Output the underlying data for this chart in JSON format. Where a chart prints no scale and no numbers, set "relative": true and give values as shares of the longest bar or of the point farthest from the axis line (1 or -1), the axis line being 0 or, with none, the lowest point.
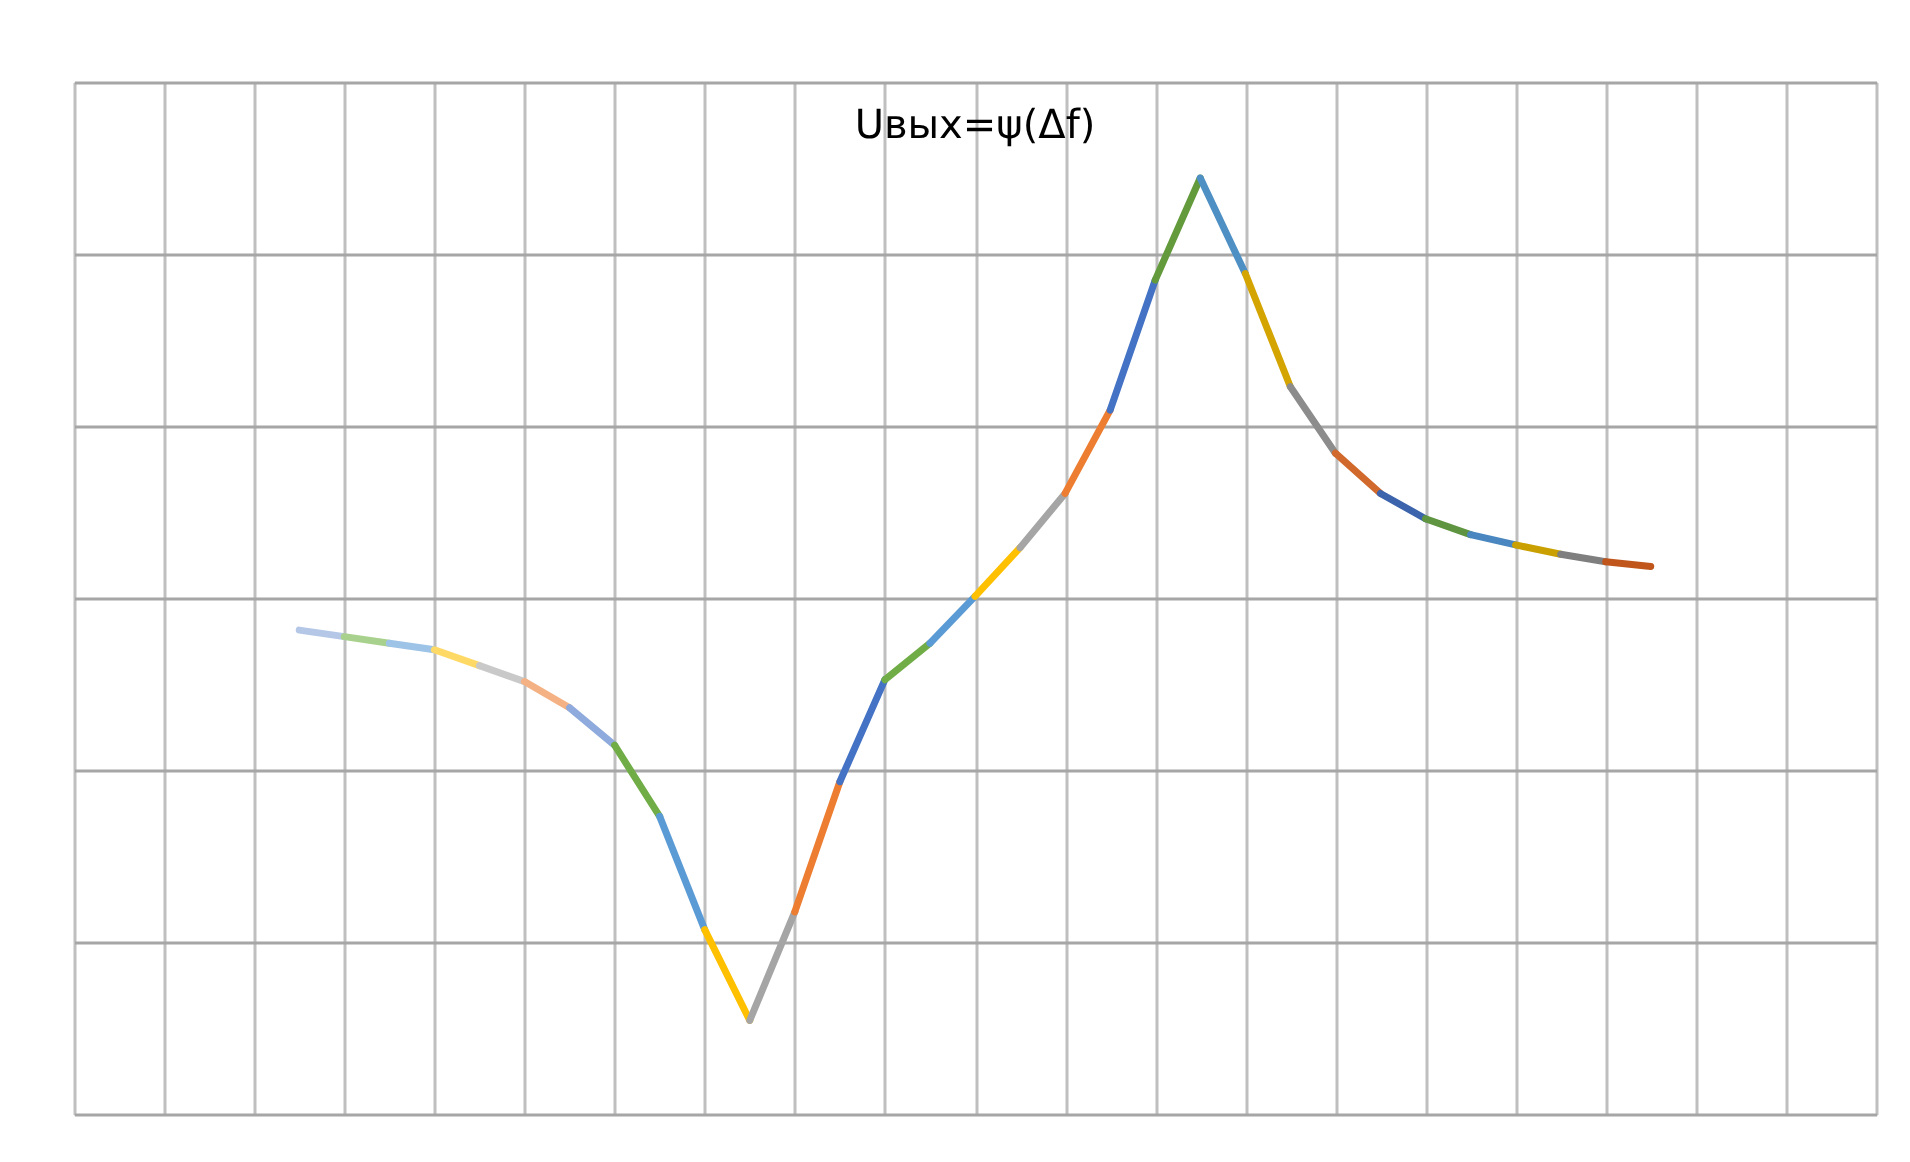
{
  "chart_data": {
    "type": "line",
    "title": "Uвых=ψ(Δf)",
    "relative": true,
    "grid": true,
    "tick_labels": false,
    "categories": [
      null,
      null,
      null,
      null,
      null,
      null,
      null,
      null,
      null,
      null,
      null,
      null,
      null,
      null,
      null,
      null,
      null,
      null,
      null,
      null,
      null,
      null,
      null,
      null,
      null,
      null,
      null,
      null,
      null,
      null,
      null,
      null,
      null,
      null,
      null,
      null,
      null,
      null,
      null,
      null,
      null
    ],
    "series": [
      {
        "color": "#b4c7e7",
        "values": [
          null,
          null,
          null,
          null,
          null,
          0.517,
          0.51,
          null,
          null,
          null,
          null,
          null,
          null,
          null,
          null,
          null,
          null,
          null,
          null,
          null,
          null,
          null,
          null,
          null,
          null,
          null,
          null,
          null,
          null,
          null,
          null,
          null,
          null,
          null,
          null,
          null,
          null,
          null,
          null,
          null,
          null
        ]
      },
      {
        "color": "#a9d18e",
        "values": [
          null,
          null,
          null,
          null,
          null,
          null,
          0.51,
          0.503,
          null,
          null,
          null,
          null,
          null,
          null,
          null,
          null,
          null,
          null,
          null,
          null,
          null,
          null,
          null,
          null,
          null,
          null,
          null,
          null,
          null,
          null,
          null,
          null,
          null,
          null,
          null,
          null,
          null,
          null,
          null,
          null,
          null
        ]
      },
      {
        "color": "#9dc3e6",
        "values": [
          null,
          null,
          null,
          null,
          null,
          null,
          null,
          0.503,
          0.496,
          null,
          null,
          null,
          null,
          null,
          null,
          null,
          null,
          null,
          null,
          null,
          null,
          null,
          null,
          null,
          null,
          null,
          null,
          null,
          null,
          null,
          null,
          null,
          null,
          null,
          null,
          null,
          null,
          null,
          null,
          null,
          null
        ]
      },
      {
        "color": "#ffd966",
        "values": [
          null,
          null,
          null,
          null,
          null,
          null,
          null,
          null,
          0.496,
          0.479,
          null,
          null,
          null,
          null,
          null,
          null,
          null,
          null,
          null,
          null,
          null,
          null,
          null,
          null,
          null,
          null,
          null,
          null,
          null,
          null,
          null,
          null,
          null,
          null,
          null,
          null,
          null,
          null,
          null,
          null,
          null
        ]
      },
      {
        "color": "#c9c9c9",
        "values": [
          null,
          null,
          null,
          null,
          null,
          null,
          null,
          null,
          null,
          0.479,
          0.462,
          null,
          null,
          null,
          null,
          null,
          null,
          null,
          null,
          null,
          null,
          null,
          null,
          null,
          null,
          null,
          null,
          null,
          null,
          null,
          null,
          null,
          null,
          null,
          null,
          null,
          null,
          null,
          null,
          null,
          null
        ]
      },
      {
        "color": "#f4b183",
        "values": [
          null,
          null,
          null,
          null,
          null,
          null,
          null,
          null,
          null,
          null,
          0.462,
          0.434,
          null,
          null,
          null,
          null,
          null,
          null,
          null,
          null,
          null,
          null,
          null,
          null,
          null,
          null,
          null,
          null,
          null,
          null,
          null,
          null,
          null,
          null,
          null,
          null,
          null,
          null,
          null,
          null,
          null
        ]
      },
      {
        "color": "#8faadc",
        "values": [
          null,
          null,
          null,
          null,
          null,
          null,
          null,
          null,
          null,
          null,
          null,
          0.434,
          0.394,
          null,
          null,
          null,
          null,
          null,
          null,
          null,
          null,
          null,
          null,
          null,
          null,
          null,
          null,
          null,
          null,
          null,
          null,
          null,
          null,
          null,
          null,
          null,
          null,
          null,
          null,
          null,
          null
        ]
      },
      {
        "color": "#70ad47",
        "values": [
          null,
          null,
          null,
          null,
          null,
          null,
          null,
          null,
          null,
          null,
          null,
          null,
          0.394,
          0.318,
          null,
          null,
          null,
          null,
          null,
          null,
          null,
          null,
          null,
          null,
          null,
          null,
          null,
          null,
          null,
          null,
          null,
          null,
          null,
          null,
          null,
          null,
          null,
          null,
          null,
          null,
          null
        ]
      },
      {
        "color": "#5b9bd5",
        "values": [
          null,
          null,
          null,
          null,
          null,
          null,
          null,
          null,
          null,
          null,
          null,
          null,
          null,
          0.318,
          0.197,
          null,
          null,
          null,
          null,
          null,
          null,
          null,
          null,
          null,
          null,
          null,
          null,
          null,
          null,
          null,
          null,
          null,
          null,
          null,
          null,
          null,
          null,
          null,
          null,
          null,
          null
        ]
      },
      {
        "color": "#ffc000",
        "values": [
          null,
          null,
          null,
          null,
          null,
          null,
          null,
          null,
          null,
          null,
          null,
          null,
          null,
          null,
          0.197,
          0.1,
          null,
          null,
          null,
          null,
          null,
          null,
          null,
          null,
          null,
          null,
          null,
          null,
          null,
          null,
          null,
          null,
          null,
          null,
          null,
          null,
          null,
          null,
          null,
          null,
          null
        ]
      },
      {
        "color": "#a5a5a5",
        "values": [
          null,
          null,
          null,
          null,
          null,
          null,
          null,
          null,
          null,
          null,
          null,
          null,
          null,
          null,
          null,
          0.1,
          0.216,
          null,
          null,
          null,
          null,
          null,
          null,
          null,
          null,
          null,
          null,
          null,
          null,
          null,
          null,
          null,
          null,
          null,
          null,
          null,
          null,
          null,
          null,
          null,
          null
        ]
      },
      {
        "color": "#ed7d31",
        "values": [
          null,
          null,
          null,
          null,
          null,
          null,
          null,
          null,
          null,
          null,
          null,
          null,
          null,
          null,
          null,
          null,
          0.216,
          0.355,
          null,
          null,
          null,
          null,
          null,
          null,
          null,
          null,
          null,
          null,
          null,
          null,
          null,
          null,
          null,
          null,
          null,
          null,
          null,
          null,
          null,
          null,
          null
        ]
      },
      {
        "color": "#4472c4",
        "values": [
          null,
          null,
          null,
          null,
          null,
          null,
          null,
          null,
          null,
          null,
          null,
          null,
          null,
          null,
          null,
          null,
          null,
          0.355,
          0.464,
          null,
          null,
          null,
          null,
          null,
          null,
          null,
          null,
          null,
          null,
          null,
          null,
          null,
          null,
          null,
          null,
          null,
          null,
          null,
          null,
          null,
          null
        ]
      },
      {
        "color": "#70ad47",
        "values": [
          null,
          null,
          null,
          null,
          null,
          null,
          null,
          null,
          null,
          null,
          null,
          null,
          null,
          null,
          null,
          null,
          null,
          null,
          0.464,
          0.503,
          null,
          null,
          null,
          null,
          null,
          null,
          null,
          null,
          null,
          null,
          null,
          null,
          null,
          null,
          null,
          null,
          null,
          null,
          null,
          null,
          null
        ]
      },
      {
        "color": "#5b9bd5",
        "values": [
          null,
          null,
          null,
          null,
          null,
          null,
          null,
          null,
          null,
          null,
          null,
          null,
          null,
          null,
          null,
          null,
          null,
          null,
          null,
          0.503,
          0.553,
          null,
          null,
          null,
          null,
          null,
          null,
          null,
          null,
          null,
          null,
          null,
          null,
          null,
          null,
          null,
          null,
          null,
          null,
          null,
          null
        ]
      },
      {
        "color": "#ffc000",
        "values": [
          null,
          null,
          null,
          null,
          null,
          null,
          null,
          null,
          null,
          null,
          null,
          null,
          null,
          null,
          null,
          null,
          null,
          null,
          null,
          null,
          0.553,
          0.605,
          null,
          null,
          null,
          null,
          null,
          null,
          null,
          null,
          null,
          null,
          null,
          null,
          null,
          null,
          null,
          null,
          null,
          null,
          null
        ]
      },
      {
        "color": "#a5a5a5",
        "values": [
          null,
          null,
          null,
          null,
          null,
          null,
          null,
          null,
          null,
          null,
          null,
          null,
          null,
          null,
          null,
          null,
          null,
          null,
          null,
          null,
          null,
          0.605,
          0.663,
          null,
          null,
          null,
          null,
          null,
          null,
          null,
          null,
          null,
          null,
          null,
          null,
          null,
          null,
          null,
          null,
          null,
          null
        ]
      },
      {
        "color": "#ed7d31",
        "values": [
          null,
          null,
          null,
          null,
          null,
          null,
          null,
          null,
          null,
          null,
          null,
          null,
          null,
          null,
          null,
          null,
          null,
          null,
          null,
          null,
          null,
          null,
          0.663,
          0.752,
          null,
          null,
          null,
          null,
          null,
          null,
          null,
          null,
          null,
          null,
          null,
          null,
          null,
          null,
          null,
          null,
          null
        ]
      },
      {
        "color": "#4472c4",
        "values": [
          null,
          null,
          null,
          null,
          null,
          null,
          null,
          null,
          null,
          null,
          null,
          null,
          null,
          null,
          null,
          null,
          null,
          null,
          null,
          null,
          null,
          null,
          null,
          0.752,
          0.891,
          null,
          null,
          null,
          null,
          null,
          null,
          null,
          null,
          null,
          null,
          null,
          null,
          null,
          null,
          null,
          null
        ]
      },
      {
        "color": "#639a3c",
        "values": [
          null,
          null,
          null,
          null,
          null,
          null,
          null,
          null,
          null,
          null,
          null,
          null,
          null,
          null,
          null,
          null,
          null,
          null,
          null,
          null,
          null,
          null,
          null,
          null,
          0.891,
          1,
          null,
          null,
          null,
          null,
          null,
          null,
          null,
          null,
          null,
          null,
          null,
          null,
          null,
          null,
          null
        ]
      },
      {
        "color": "#4e8fc4",
        "values": [
          null,
          null,
          null,
          null,
          null,
          null,
          null,
          null,
          null,
          null,
          null,
          null,
          null,
          null,
          null,
          null,
          null,
          null,
          null,
          null,
          null,
          null,
          null,
          null,
          null,
          1,
          0.898,
          null,
          null,
          null,
          null,
          null,
          null,
          null,
          null,
          null,
          null,
          null,
          null,
          null,
          null
        ]
      },
      {
        "color": "#d4a500",
        "values": [
          null,
          null,
          null,
          null,
          null,
          null,
          null,
          null,
          null,
          null,
          null,
          null,
          null,
          null,
          null,
          null,
          null,
          null,
          null,
          null,
          null,
          null,
          null,
          null,
          null,
          null,
          0.898,
          0.777,
          null,
          null,
          null,
          null,
          null,
          null,
          null,
          null,
          null,
          null,
          null,
          null,
          null
        ]
      },
      {
        "color": "#8c8c8c",
        "values": [
          null,
          null,
          null,
          null,
          null,
          null,
          null,
          null,
          null,
          null,
          null,
          null,
          null,
          null,
          null,
          null,
          null,
          null,
          null,
          null,
          null,
          null,
          null,
          null,
          null,
          null,
          null,
          0.777,
          0.706,
          null,
          null,
          null,
          null,
          null,
          null,
          null,
          null,
          null,
          null,
          null,
          null
        ]
      },
      {
        "color": "#d0692b",
        "values": [
          null,
          null,
          null,
          null,
          null,
          null,
          null,
          null,
          null,
          null,
          null,
          null,
          null,
          null,
          null,
          null,
          null,
          null,
          null,
          null,
          null,
          null,
          null,
          null,
          null,
          null,
          null,
          null,
          0.706,
          0.663,
          null,
          null,
          null,
          null,
          null,
          null,
          null,
          null,
          null,
          null,
          null
        ]
      },
      {
        "color": "#3b64ad",
        "values": [
          null,
          null,
          null,
          null,
          null,
          null,
          null,
          null,
          null,
          null,
          null,
          null,
          null,
          null,
          null,
          null,
          null,
          null,
          null,
          null,
          null,
          null,
          null,
          null,
          null,
          null,
          null,
          null,
          null,
          0.663,
          0.636,
          null,
          null,
          null,
          null,
          null,
          null,
          null,
          null,
          null,
          null
        ]
      },
      {
        "color": "#5f9440",
        "values": [
          null,
          null,
          null,
          null,
          null,
          null,
          null,
          null,
          null,
          null,
          null,
          null,
          null,
          null,
          null,
          null,
          null,
          null,
          null,
          null,
          null,
          null,
          null,
          null,
          null,
          null,
          null,
          null,
          null,
          null,
          0.636,
          0.619,
          null,
          null,
          null,
          null,
          null,
          null,
          null,
          null,
          null
        ]
      },
      {
        "color": "#4a86bf",
        "values": [
          null,
          null,
          null,
          null,
          null,
          null,
          null,
          null,
          null,
          null,
          null,
          null,
          null,
          null,
          null,
          null,
          null,
          null,
          null,
          null,
          null,
          null,
          null,
          null,
          null,
          null,
          null,
          null,
          null,
          null,
          null,
          0.619,
          0.608,
          null,
          null,
          null,
          null,
          null,
          null,
          null,
          null
        ]
      },
      {
        "color": "#c9a000",
        "values": [
          null,
          null,
          null,
          null,
          null,
          null,
          null,
          null,
          null,
          null,
          null,
          null,
          null,
          null,
          null,
          null,
          null,
          null,
          null,
          null,
          null,
          null,
          null,
          null,
          null,
          null,
          null,
          null,
          null,
          null,
          null,
          null,
          0.608,
          0.598,
          null,
          null,
          null,
          null,
          null,
          null,
          null
        ]
      },
      {
        "color": "#7f7f7f",
        "values": [
          null,
          null,
          null,
          null,
          null,
          null,
          null,
          null,
          null,
          null,
          null,
          null,
          null,
          null,
          null,
          null,
          null,
          null,
          null,
          null,
          null,
          null,
          null,
          null,
          null,
          null,
          null,
          null,
          null,
          null,
          null,
          null,
          null,
          0.598,
          0.59,
          null,
          null,
          null,
          null,
          null,
          null
        ]
      },
      {
        "color": "#c0561b",
        "values": [
          null,
          null,
          null,
          null,
          null,
          null,
          null,
          null,
          null,
          null,
          null,
          null,
          null,
          null,
          null,
          null,
          null,
          null,
          null,
          null,
          null,
          null,
          null,
          null,
          null,
          null,
          null,
          null,
          null,
          null,
          null,
          null,
          null,
          null,
          0.59,
          0.585,
          null,
          null,
          null,
          null,
          null
        ]
      }
    ]
  }
}
